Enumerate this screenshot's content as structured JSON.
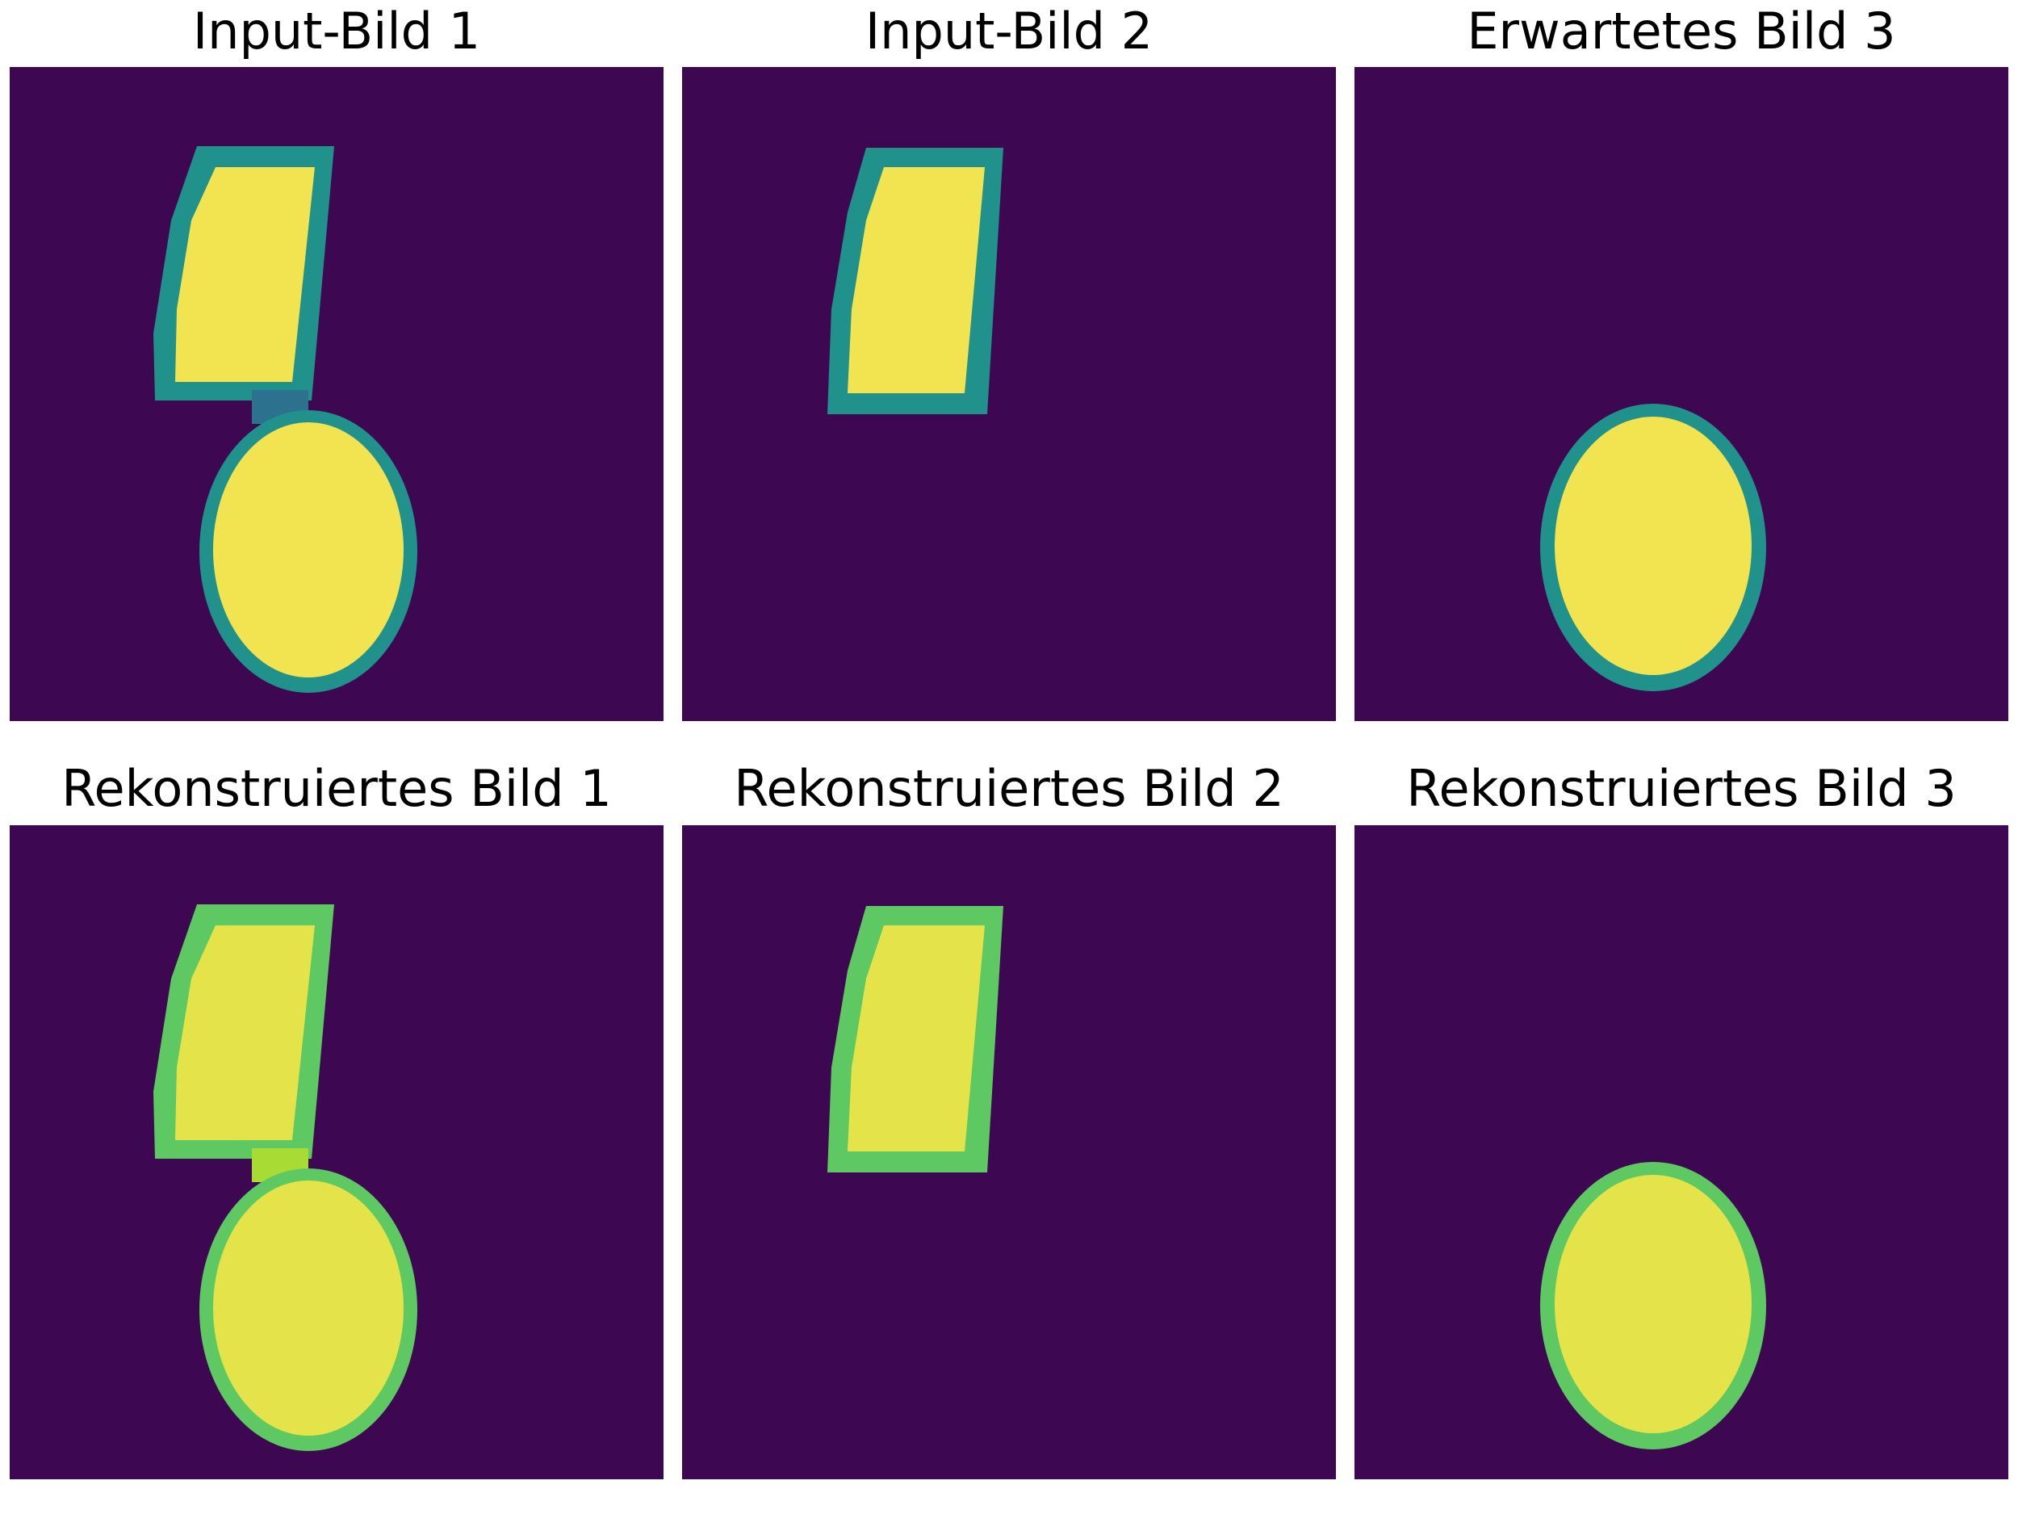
{
  "colors": {
    "background": "#3e0751",
    "shape_core": "#f1e450",
    "reconstruction_core": "#e4e44a",
    "edge_palette": [
      "#45347f",
      "#2c728e",
      "#21918c",
      "#5ec962",
      "#a8db34"
    ]
  },
  "panels": [
    {
      "title": "Input-Bild 1",
      "image": {
        "type": "heatmap-image",
        "colormap": "viridis",
        "shapes": [
          {
            "kind": "parallelogram",
            "label": "slanted-block"
          },
          {
            "kind": "ellipse",
            "label": "oval"
          }
        ]
      }
    },
    {
      "title": "Input-Bild 2",
      "image": {
        "type": "heatmap-image",
        "colormap": "viridis",
        "shapes": [
          {
            "kind": "parallelogram",
            "label": "slanted-block"
          }
        ]
      }
    },
    {
      "title": "Erwartetes Bild 3",
      "image": {
        "type": "heatmap-image",
        "colormap": "viridis",
        "shapes": [
          {
            "kind": "ellipse",
            "label": "oval"
          }
        ]
      }
    },
    {
      "title": "Rekonstruiertes Bild 1",
      "image": {
        "type": "heatmap-image",
        "colormap": "viridis",
        "shapes": [
          {
            "kind": "parallelogram",
            "label": "slanted-block"
          },
          {
            "kind": "ellipse",
            "label": "oval"
          }
        ]
      }
    },
    {
      "title": "Rekonstruiertes Bild 2",
      "image": {
        "type": "heatmap-image",
        "colormap": "viridis",
        "shapes": [
          {
            "kind": "parallelogram",
            "label": "slanted-block"
          }
        ]
      }
    },
    {
      "title": "Rekonstruiertes Bild 3",
      "image": {
        "type": "heatmap-image",
        "colormap": "viridis",
        "shapes": [
          {
            "kind": "ellipse",
            "label": "oval"
          }
        ]
      }
    }
  ]
}
